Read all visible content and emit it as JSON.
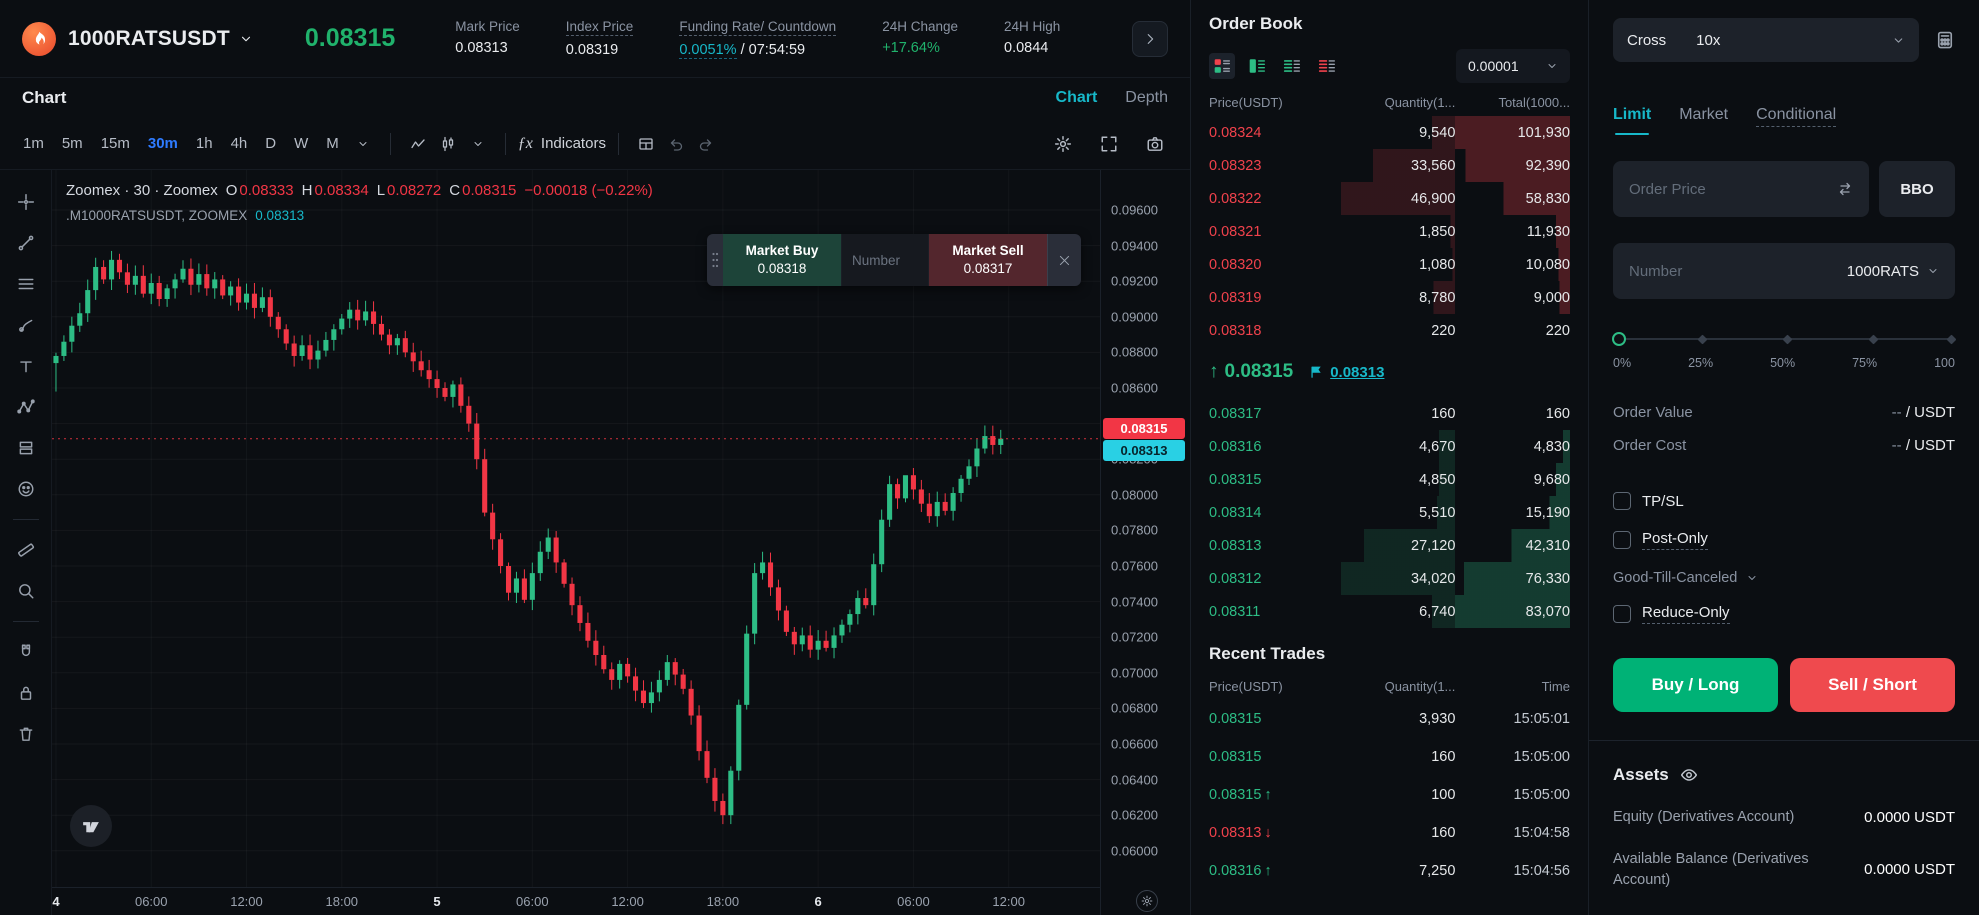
{
  "colors": {
    "green": "#20b26c",
    "red": "#ef454a",
    "teal": "#17b8c9",
    "blue": "#2e7bff",
    "candle_up": "#2dbd85",
    "candle_down": "#f23645"
  },
  "header": {
    "symbol": "1000RATSUSDT",
    "last_price": "0.08315",
    "stats": [
      {
        "label": "Mark Price",
        "parts": [
          {
            "t": "0.08313"
          }
        ]
      },
      {
        "label": "Index Price",
        "label_dashed": true,
        "parts": [
          {
            "t": "0.08319"
          }
        ]
      },
      {
        "label": "Funding Rate/ Countdown",
        "label_dashed": true,
        "parts": [
          {
            "t": "0.0051%",
            "cls": "teal"
          },
          {
            "t": "/ 07:54:59"
          }
        ]
      },
      {
        "label": "24H Change",
        "parts": [
          {
            "t": "+17.64%",
            "cls": "green"
          }
        ]
      },
      {
        "label": "24H High",
        "parts": [
          {
            "t": "0.0844"
          }
        ]
      }
    ]
  },
  "chart": {
    "section_title": "Chart",
    "view_tabs": [
      "Chart",
      "Depth"
    ],
    "timeframes": [
      "1m",
      "5m",
      "15m",
      "30m",
      "1h",
      "4h",
      "D",
      "W",
      "M"
    ],
    "active_timeframe": "30m",
    "indicators_label": "Indicators",
    "legend": {
      "title": "Zoomex · 30 · Zoomex",
      "o": "0.08333",
      "h": "0.08334",
      "l": "0.08272",
      "c": "0.08315",
      "change": "−0.00018 (−0.22%)",
      "sub_label": ".M1000RATSUSDT, ZOOMEX",
      "sub_value": "0.08313"
    },
    "order_widget": {
      "buy_label": "Market Buy",
      "buy_price": "0.08318",
      "qty_placeholder": "Number",
      "sell_label": "Market Sell",
      "sell_price": "0.08317"
    },
    "price_tags": {
      "last": "0.08315",
      "mark": "0.08313"
    },
    "y_labels": [
      "0.09600",
      "0.09400",
      "0.09200",
      "0.09000",
      "0.08800",
      "0.08600",
      "0.08400",
      "0.08200",
      "0.08000",
      "0.07800",
      "0.07600",
      "0.07400",
      "0.07200",
      "0.07000",
      "0.06800",
      "0.06600",
      "0.06400",
      "0.06200",
      "0.06000"
    ],
    "draw_tools": [
      "crosshair",
      "trendline",
      "fib",
      "brush",
      "text",
      "pattern",
      "position",
      "emoji",
      "ruler",
      "zoom",
      "magnet",
      "lock",
      "trash"
    ]
  },
  "chart_data": {
    "type": "candlestick",
    "symbol": "1000RATSUSDT",
    "interval": "30m",
    "y_range": [
      0.06,
      0.096
    ],
    "last_price": 0.08315,
    "mark_price": 0.08313,
    "x_ticks": [
      {
        "slot": 0,
        "label": "4",
        "major": true
      },
      {
        "slot": 12,
        "label": "06:00"
      },
      {
        "slot": 24,
        "label": "12:00"
      },
      {
        "slot": 36,
        "label": "18:00"
      },
      {
        "slot": 48,
        "label": "5",
        "major": true
      },
      {
        "slot": 60,
        "label": "06:00"
      },
      {
        "slot": 72,
        "label": "12:00"
      },
      {
        "slot": 84,
        "label": "18:00"
      },
      {
        "slot": 96,
        "label": "6",
        "major": true
      },
      {
        "slot": 108,
        "label": "06:00"
      },
      {
        "slot": 120,
        "label": "12:00"
      }
    ],
    "closes": [
      0.0878,
      0.0886,
      0.0895,
      0.0902,
      0.0915,
      0.0928,
      0.0921,
      0.0932,
      0.0925,
      0.0918,
      0.0923,
      0.0913,
      0.0919,
      0.091,
      0.0916,
      0.0921,
      0.0927,
      0.0918,
      0.0924,
      0.0916,
      0.0921,
      0.0912,
      0.0917,
      0.0908,
      0.0913,
      0.0905,
      0.0911,
      0.09,
      0.0893,
      0.0885,
      0.0878,
      0.0884,
      0.0876,
      0.0881,
      0.0887,
      0.0893,
      0.0899,
      0.0904,
      0.0898,
      0.0903,
      0.0896,
      0.089,
      0.0884,
      0.0888,
      0.088,
      0.0875,
      0.087,
      0.0865,
      0.086,
      0.0855,
      0.0862,
      0.085,
      0.084,
      0.082,
      0.079,
      0.0775,
      0.076,
      0.0745,
      0.0753,
      0.0741,
      0.0756,
      0.0768,
      0.0776,
      0.0762,
      0.075,
      0.0738,
      0.0728,
      0.0718,
      0.071,
      0.0702,
      0.0696,
      0.0705,
      0.0698,
      0.069,
      0.0683,
      0.0689,
      0.0696,
      0.0706,
      0.0699,
      0.0691,
      0.0676,
      0.0656,
      0.0641,
      0.0628,
      0.062,
      0.0645,
      0.0682,
      0.0722,
      0.0756,
      0.0762,
      0.0748,
      0.0735,
      0.0723,
      0.0716,
      0.0721,
      0.0713,
      0.0718,
      0.0714,
      0.0721,
      0.0727,
      0.0733,
      0.0742,
      0.0738,
      0.0761,
      0.0786,
      0.0806,
      0.0798,
      0.0811,
      0.0803,
      0.0795,
      0.0788,
      0.0796,
      0.0791,
      0.0801,
      0.0809,
      0.0816,
      0.0826,
      0.0833,
      0.0828,
      0.08315
    ],
    "special_wicks": {
      "0": {
        "lo": 0.0858
      },
      "7": {
        "hi": 0.0937
      },
      "84": {
        "lo": 0.0615
      },
      "107": {
        "hi": 0.081
      }
    }
  },
  "orderbook": {
    "title": "Order Book",
    "tick_size": "0.00001",
    "headers": [
      "Price(USDT)",
      "Quantity(1...",
      "Total(1000..."
    ],
    "asks": [
      [
        "0.08324",
        "9,540",
        "101,930"
      ],
      [
        "0.08323",
        "33,560",
        "92,390"
      ],
      [
        "0.08322",
        "46,900",
        "58,830"
      ],
      [
        "0.08321",
        "1,850",
        "11,930"
      ],
      [
        "0.08320",
        "1,080",
        "10,080"
      ],
      [
        "0.08319",
        "8,780",
        "9,000"
      ],
      [
        "0.08318",
        "220",
        "220"
      ]
    ],
    "mid": {
      "last": "0.08315",
      "mark": "0.08313"
    },
    "bids": [
      [
        "0.08317",
        "160",
        "160"
      ],
      [
        "0.08316",
        "4,670",
        "4,830"
      ],
      [
        "0.08315",
        "4,850",
        "9,680"
      ],
      [
        "0.08314",
        "5,510",
        "15,190"
      ],
      [
        "0.08313",
        "27,120",
        "42,310"
      ],
      [
        "0.08312",
        "34,020",
        "76,330"
      ],
      [
        "0.08311",
        "6,740",
        "83,070"
      ]
    ]
  },
  "trades": {
    "title": "Recent Trades",
    "headers": [
      "Price(USDT)",
      "Quantity(1...",
      "Time"
    ],
    "rows": [
      {
        "price": "0.08315",
        "side": "buy",
        "arrow": "",
        "qty": "3,930",
        "time": "15:05:01"
      },
      {
        "price": "0.08315",
        "side": "buy",
        "arrow": "",
        "qty": "160",
        "time": "15:05:00"
      },
      {
        "price": "0.08315",
        "side": "buy",
        "arrow": "up",
        "qty": "100",
        "time": "15:05:00"
      },
      {
        "price": "0.08313",
        "side": "sell",
        "arrow": "down",
        "qty": "160",
        "time": "15:04:58"
      },
      {
        "price": "0.08316",
        "side": "buy",
        "arrow": "up",
        "qty": "7,250",
        "time": "15:04:56"
      }
    ]
  },
  "trade_panel": {
    "margin_mode": "Cross",
    "leverage": "10x",
    "tabs": [
      "Limit",
      "Market",
      "Conditional"
    ],
    "price_placeholder": "Order Price",
    "bbo": "BBO",
    "qty_placeholder": "Number",
    "unit": "1000RATS",
    "slider_labels": [
      "0%",
      "25%",
      "50%",
      "75%",
      "100"
    ],
    "order_value_label": "Order Value",
    "order_cost_label": "Order Cost",
    "empty_value": "--",
    "value_suffix": "/ USDT",
    "tpsl": "TP/SL",
    "post_only": "Post-Only",
    "tif": "Good-Till-Canceled",
    "reduce_only": "Reduce-Only",
    "buy_button": "Buy / Long",
    "sell_button": "Sell / Short",
    "assets_title": "Assets",
    "asset_rows": [
      {
        "label": "Equity (Derivatives Account)",
        "value": "0.0000 USDT"
      },
      {
        "label": "Available Balance (Derivatives Account)",
        "value": "0.0000 USDT"
      }
    ]
  }
}
